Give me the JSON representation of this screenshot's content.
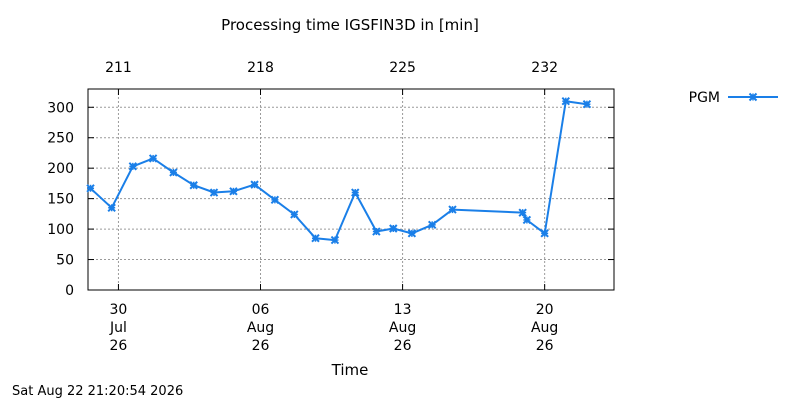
{
  "chart_data": {
    "type": "line",
    "title": "Processing time IGSFIN3D in [min]",
    "xlabel": "Time",
    "ylabel": "",
    "ylim": [
      0,
      330
    ],
    "y_ticks": [
      0,
      50,
      100,
      150,
      200,
      250,
      300
    ],
    "xlim": [
      "2026-07-28T12:00",
      "2026-08-23T10:00"
    ],
    "x_ticks": [
      {
        "date": "2026-07-30",
        "lines": [
          "30",
          "Jul",
          "26"
        ]
      },
      {
        "date": "2026-08-06",
        "lines": [
          "06",
          "Aug",
          "26"
        ]
      },
      {
        "date": "2026-08-13",
        "lines": [
          "13",
          "Aug",
          "26"
        ]
      },
      {
        "date": "2026-08-20",
        "lines": [
          "20",
          "Aug",
          "26"
        ]
      }
    ],
    "x2_ticks": [
      {
        "date": "2026-07-30",
        "label": "211"
      },
      {
        "date": "2026-08-06",
        "label": "218"
      },
      {
        "date": "2026-08-13",
        "label": "225"
      },
      {
        "date": "2026-08-20",
        "label": "232"
      }
    ],
    "grid": true,
    "legend_position": "top-right",
    "series": [
      {
        "name": "PGM",
        "color": "#1a7fe8",
        "marker": "x-cross",
        "x": [
          "2026-07-28T15:00",
          "2026-07-29T16:00",
          "2026-07-30T17:00",
          "2026-07-31T17:00",
          "2026-08-01T17:00",
          "2026-08-02T17:00",
          "2026-08-03T17:00",
          "2026-08-04T16:00",
          "2026-08-05T17:00",
          "2026-08-06T17:00",
          "2026-08-07T16:00",
          "2026-08-08T17:00",
          "2026-08-09T16:00",
          "2026-08-10T16:00",
          "2026-08-11T17:00",
          "2026-08-12T13:00",
          "2026-08-13T11:00",
          "2026-08-14T11:00",
          "2026-08-15T11:00",
          "2026-08-18T22:00",
          "2026-08-19T03:00",
          "2026-08-20T00:00",
          "2026-08-21T01:00",
          "2026-08-22T02:00"
        ],
        "values": [
          167,
          135,
          203,
          216,
          193,
          172,
          160,
          162,
          173,
          148,
          124,
          85,
          82,
          160,
          96,
          101,
          93,
          107,
          132,
          127,
          115,
          93,
          310,
          305
        ]
      }
    ]
  },
  "footer": {
    "timestamp": "Sat Aug 22 21:20:54 2026"
  }
}
